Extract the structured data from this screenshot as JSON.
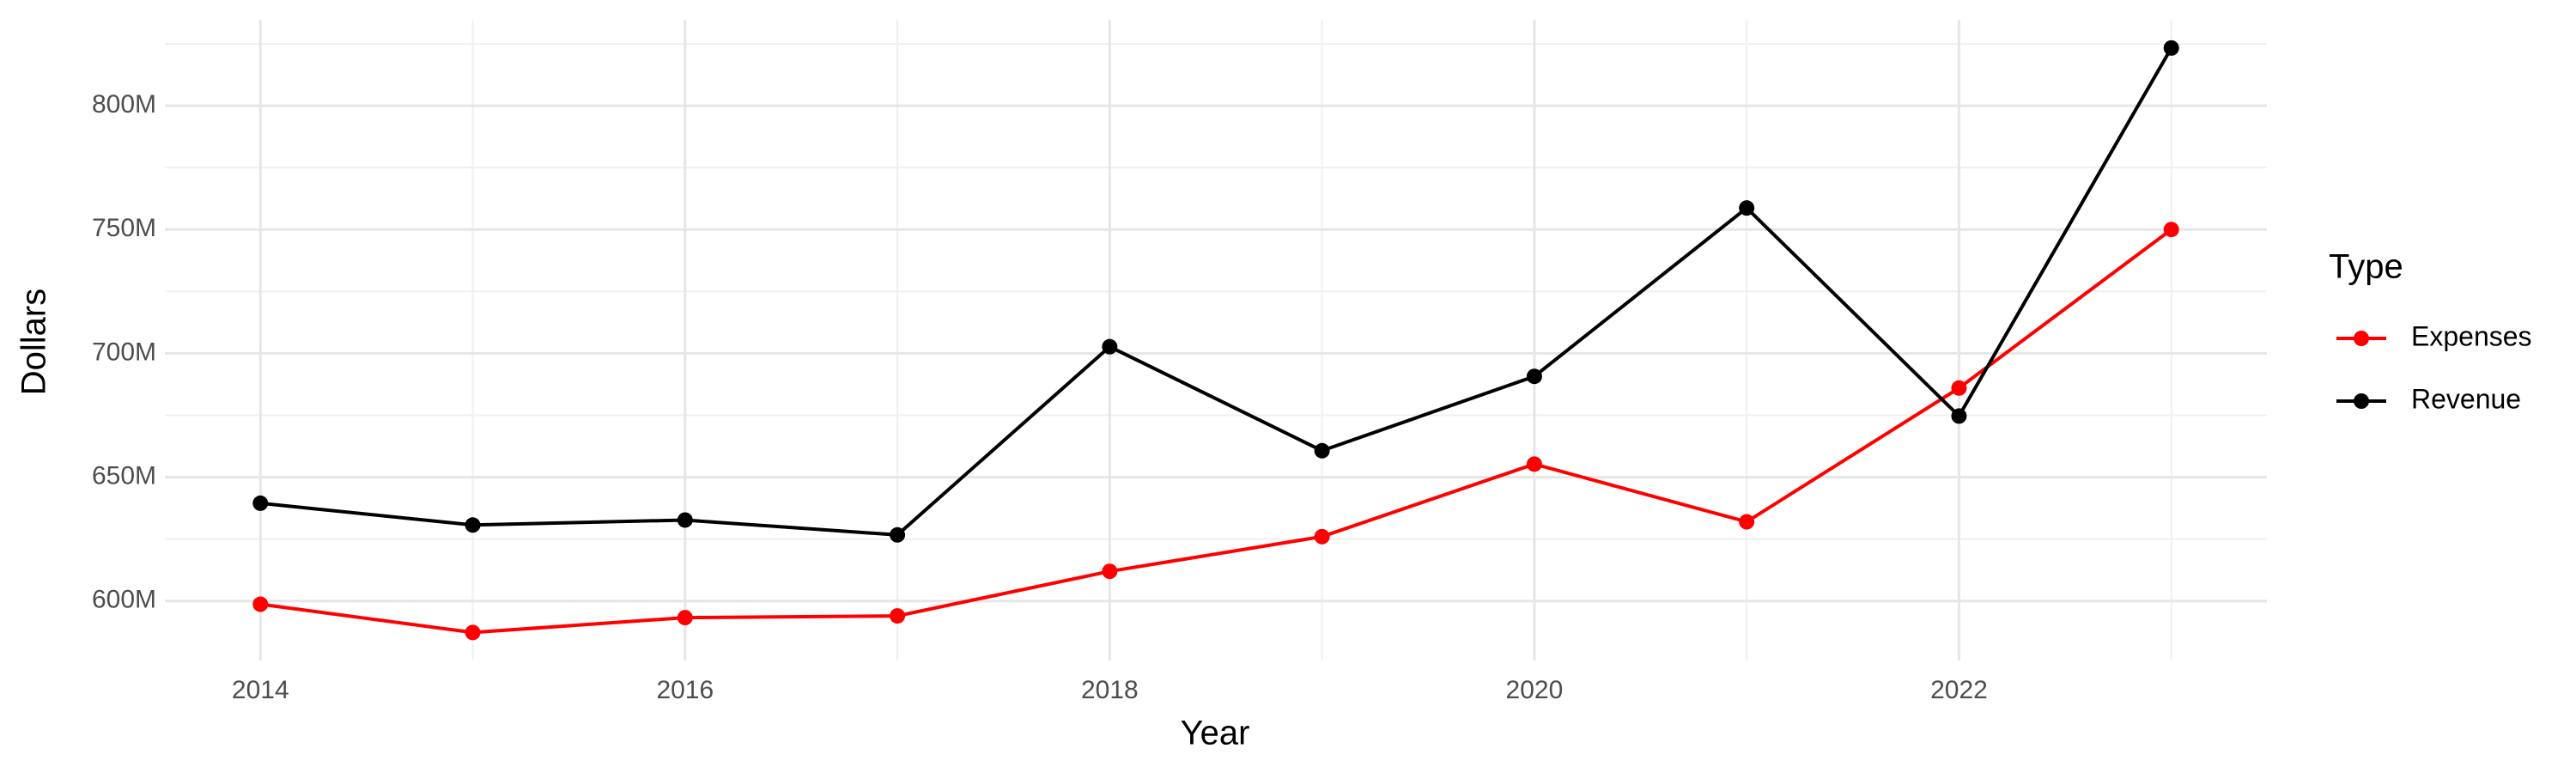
{
  "chart_data": {
    "type": "line",
    "x_label": "Year",
    "y_label": "Dollars",
    "x": [
      2014,
      2015,
      2016,
      2017,
      2018,
      2019,
      2020,
      2021,
      2022,
      2023
    ],
    "series": [
      {
        "name": "Expenses",
        "color": "#ff0000",
        "values": [
          598700000,
          587300000,
          593300000,
          594000000,
          612000000,
          626000000,
          655300000,
          632000000,
          686000000,
          750000000
        ]
      },
      {
        "name": "Revenue",
        "color": "#000000",
        "values": [
          639500000,
          630700000,
          632700000,
          626700000,
          702700000,
          660700000,
          690700000,
          758700000,
          674700000,
          823300000
        ]
      }
    ],
    "xlim": [
      2013.55,
      2023.45
    ],
    "xticks": [
      2014,
      2016,
      2018,
      2020,
      2022
    ],
    "ylim": [
      576000000,
      834700000
    ],
    "yticks": [
      {
        "value": 600000000,
        "label": "600M"
      },
      {
        "value": 650000000,
        "label": "650M"
      },
      {
        "value": 700000000,
        "label": "700M"
      },
      {
        "value": 750000000,
        "label": "750M"
      },
      {
        "value": 800000000,
        "label": "800M"
      }
    ],
    "grid": true,
    "legend_title": "Type",
    "legend_position": "right"
  }
}
